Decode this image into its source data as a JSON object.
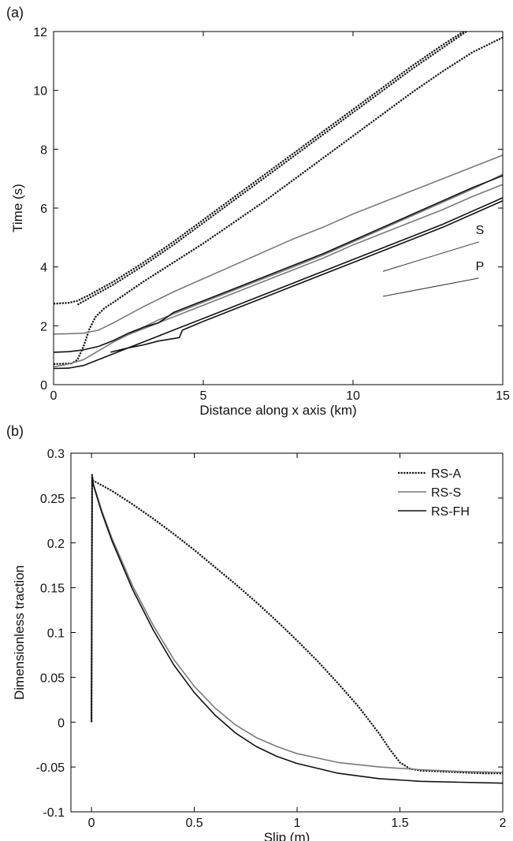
{
  "chart_data": [
    {
      "panel_label": "(a)",
      "type": "line",
      "xlabel": "Distance along x axis (km)",
      "ylabel": "Time (s)",
      "xlim": [
        0,
        15
      ],
      "ylim": [
        0,
        12
      ],
      "xticks": [
        0,
        5,
        10,
        15
      ],
      "yticks": [
        0,
        2,
        4,
        6,
        8,
        10,
        12
      ],
      "grid": false,
      "annotations": [
        {
          "text": "S",
          "reference_line": [
            [
              11,
              3.85
            ],
            [
              14.2,
              4.85
            ]
          ]
        },
        {
          "text": "P",
          "reference_line": [
            [
              11,
              3.0
            ],
            [
              14.2,
              3.62
            ]
          ]
        }
      ],
      "series": [
        {
          "style": "dotted",
          "color": "#111111",
          "x": [
            0,
            0.5,
            0.8,
            1.2,
            2,
            3,
            4,
            5,
            6,
            7,
            8,
            9,
            10,
            11,
            12,
            13,
            14,
            14.5
          ],
          "y": [
            2.75,
            2.78,
            2.85,
            3.05,
            3.5,
            4.15,
            4.85,
            5.6,
            6.35,
            7.1,
            7.85,
            8.6,
            9.35,
            10.1,
            10.85,
            11.55,
            12.2,
            12.55
          ]
        },
        {
          "style": "dotted",
          "color": "#111111",
          "x": [
            0.8,
            1.2,
            2,
            3,
            4,
            5,
            6,
            7,
            8,
            9,
            10,
            11,
            12,
            13,
            14,
            14.3
          ],
          "y": [
            2.72,
            2.95,
            3.4,
            4.05,
            4.75,
            5.5,
            6.25,
            7.0,
            7.75,
            8.5,
            9.25,
            10.0,
            10.75,
            11.45,
            12.15,
            12.35
          ]
        },
        {
          "style": "dotted",
          "color": "#111111",
          "x": [
            0,
            0.6,
            0.8,
            1.0,
            1.2,
            1.4,
            1.7,
            2,
            2.5,
            3,
            4,
            5,
            6,
            7,
            8,
            9,
            10,
            11,
            12,
            13,
            14,
            15
          ],
          "y": [
            0.7,
            0.72,
            0.85,
            1.3,
            1.9,
            2.3,
            2.6,
            2.8,
            3.15,
            3.5,
            4.15,
            4.8,
            5.5,
            6.2,
            6.95,
            7.7,
            8.45,
            9.2,
            9.95,
            10.65,
            11.3,
            11.8
          ]
        },
        {
          "style": "solid",
          "color": "#7a7a7a",
          "x": [
            0,
            0.5,
            1,
            1.5,
            2,
            3,
            4,
            5,
            6,
            7,
            8,
            9,
            10,
            11,
            12,
            13,
            14,
            15
          ],
          "y": [
            1.72,
            1.73,
            1.75,
            1.85,
            2.1,
            2.65,
            3.15,
            3.6,
            4.05,
            4.5,
            4.95,
            5.35,
            5.8,
            6.2,
            6.6,
            7.0,
            7.4,
            7.8
          ]
        },
        {
          "style": "solid",
          "color": "#7a7a7a",
          "x": [
            2.5,
            3,
            4,
            5,
            6,
            7,
            8,
            9,
            10,
            11,
            12,
            13,
            14,
            15
          ],
          "y": [
            1.7,
            1.9,
            2.3,
            2.7,
            3.1,
            3.5,
            3.9,
            4.3,
            4.75,
            5.15,
            5.55,
            5.95,
            6.4,
            6.8
          ]
        },
        {
          "style": "solid",
          "color": "#7a7a7a",
          "x": [
            0,
            0.5,
            1,
            2,
            3,
            3.5,
            4,
            5,
            6,
            7,
            8,
            9,
            10,
            11,
            12,
            13,
            14,
            15
          ],
          "y": [
            0.6,
            0.7,
            0.85,
            1.45,
            1.95,
            2.2,
            2.4,
            2.8,
            3.2,
            3.6,
            4.0,
            4.4,
            4.85,
            5.3,
            5.75,
            6.2,
            6.65,
            7.15
          ]
        },
        {
          "style": "solid",
          "color": "#111111",
          "x": [
            0,
            0.5,
            1,
            1.5,
            2,
            2.5,
            3,
            3.5,
            3.8,
            4,
            5,
            6,
            7,
            8,
            9,
            10,
            11,
            12,
            13,
            14,
            15
          ],
          "y": [
            1.1,
            1.12,
            1.18,
            1.3,
            1.5,
            1.75,
            1.95,
            2.1,
            2.3,
            2.45,
            2.85,
            3.25,
            3.65,
            4.05,
            4.45,
            4.9,
            5.35,
            5.8,
            6.25,
            6.7,
            7.1
          ]
        },
        {
          "style": "solid",
          "color": "#111111",
          "x": [
            0,
            0.5,
            1,
            1.5,
            2,
            2.5,
            3,
            3.5,
            4,
            5,
            6,
            7,
            8,
            9,
            10,
            11,
            12,
            13,
            14,
            15
          ],
          "y": [
            0.55,
            0.56,
            0.65,
            0.85,
            1.05,
            1.25,
            1.45,
            1.65,
            1.85,
            2.25,
            2.65,
            3.05,
            3.45,
            3.85,
            4.25,
            4.65,
            5.05,
            5.45,
            5.9,
            6.35
          ]
        },
        {
          "style": "solid",
          "color": "#111111",
          "x": [
            1.9,
            2.5,
            3,
            3.5,
            4.2,
            4.3,
            5,
            6,
            7,
            8,
            9,
            10,
            11,
            12,
            13,
            14,
            15
          ],
          "y": [
            1.1,
            1.25,
            1.35,
            1.48,
            1.6,
            1.85,
            2.15,
            2.55,
            2.95,
            3.35,
            3.75,
            4.15,
            4.55,
            4.95,
            5.35,
            5.8,
            6.25
          ]
        }
      ]
    },
    {
      "panel_label": "(b)",
      "type": "line",
      "xlabel": "Slip (m)",
      "ylabel": "Dimensionless traction",
      "xlim": [
        -0.1,
        2
      ],
      "ylim": [
        -0.1,
        0.3
      ],
      "xticks": [
        0,
        0.5,
        1,
        1.5,
        2
      ],
      "xtick_labels": [
        "0",
        "0.5",
        "1",
        "1.5",
        "2"
      ],
      "yticks": [
        -0.1,
        -0.05,
        0,
        0.05,
        0.1,
        0.15,
        0.2,
        0.25,
        0.3
      ],
      "ytick_labels": [
        "-0.1",
        "-0.05",
        "0",
        "0.05",
        "0.1",
        "0.15",
        "0.2",
        "0.25",
        "0.3"
      ],
      "grid": false,
      "legend_position": "top-right",
      "series": [
        {
          "name": "RS-A",
          "style": "dotted",
          "color": "#111111",
          "x": [
            0,
            0.003,
            0.006,
            0.02,
            0.1,
            0.2,
            0.3,
            0.4,
            0.5,
            0.6,
            0.7,
            0.8,
            0.9,
            1.0,
            1.1,
            1.2,
            1.3,
            1.4,
            1.45,
            1.5,
            1.55,
            1.6,
            1.7,
            1.8,
            1.9,
            2.0
          ],
          "y": [
            0,
            0.276,
            0.27,
            0.268,
            0.258,
            0.243,
            0.227,
            0.21,
            0.192,
            0.173,
            0.154,
            0.134,
            0.113,
            0.091,
            0.068,
            0.043,
            0.017,
            -0.013,
            -0.03,
            -0.045,
            -0.052,
            -0.054,
            -0.055,
            -0.056,
            -0.057,
            -0.057
          ]
        },
        {
          "name": "RS-S",
          "style": "solid",
          "color": "#7a7a7a",
          "x": [
            0,
            0.003,
            0.01,
            0.05,
            0.1,
            0.2,
            0.3,
            0.4,
            0.5,
            0.6,
            0.7,
            0.8,
            0.9,
            1.0,
            1.2,
            1.4,
            1.6,
            1.8,
            2.0
          ],
          "y": [
            0,
            0.274,
            0.265,
            0.236,
            0.205,
            0.152,
            0.108,
            0.07,
            0.04,
            0.016,
            -0.003,
            -0.017,
            -0.027,
            -0.035,
            -0.045,
            -0.05,
            -0.053,
            -0.055,
            -0.056
          ]
        },
        {
          "name": "RS-FH",
          "style": "solid",
          "color": "#111111",
          "x": [
            0,
            0.003,
            0.01,
            0.05,
            0.1,
            0.2,
            0.3,
            0.4,
            0.5,
            0.6,
            0.7,
            0.8,
            0.9,
            1.0,
            1.2,
            1.4,
            1.6,
            1.8,
            2.0
          ],
          "y": [
            0,
            0.274,
            0.264,
            0.234,
            0.202,
            0.148,
            0.103,
            0.064,
            0.033,
            0.008,
            -0.012,
            -0.027,
            -0.038,
            -0.046,
            -0.057,
            -0.063,
            -0.066,
            -0.067,
            -0.068
          ]
        }
      ]
    }
  ]
}
